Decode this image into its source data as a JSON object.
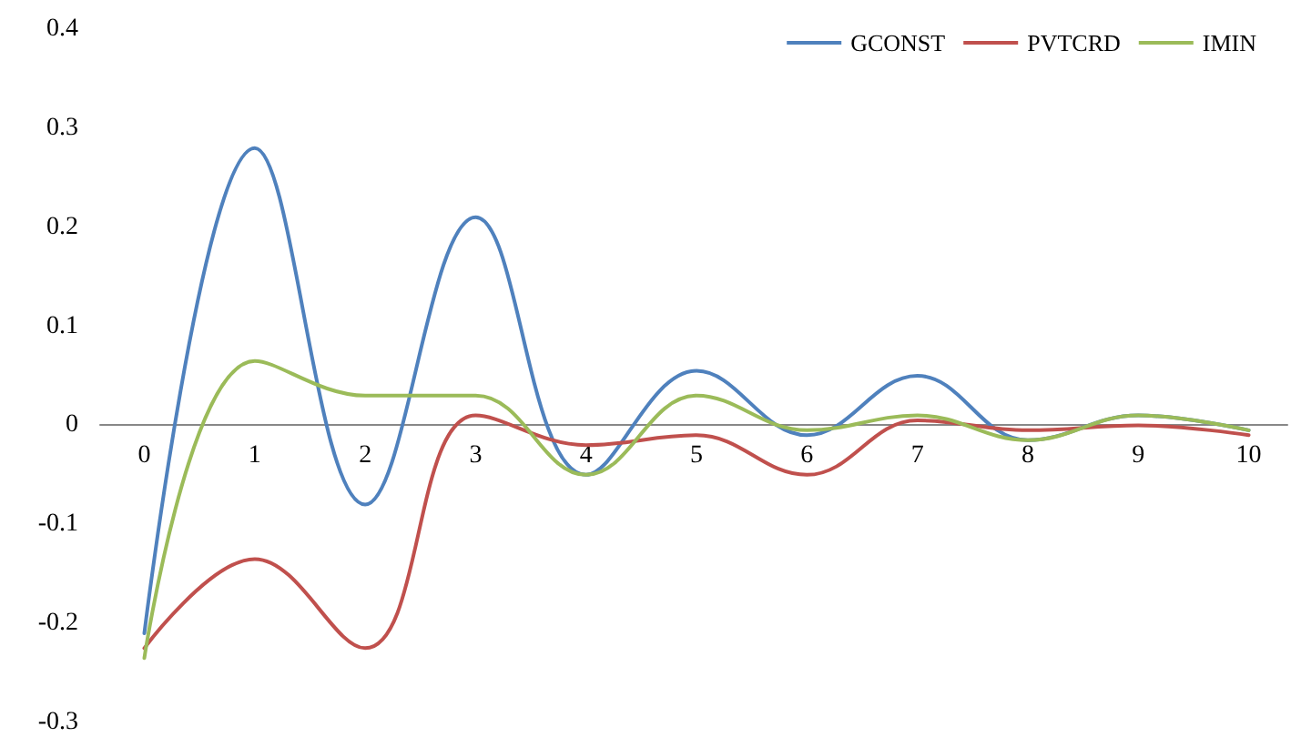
{
  "chart_data": {
    "type": "line",
    "x": [
      0,
      1,
      2,
      3,
      4,
      5,
      6,
      7,
      8,
      9,
      10
    ],
    "series": [
      {
        "name": "GCONST",
        "color": "#4f81bd",
        "values": [
          -0.21,
          0.28,
          -0.08,
          0.21,
          -0.05,
          0.055,
          -0.01,
          0.05,
          -0.015,
          0.01,
          -0.005
        ]
      },
      {
        "name": "PVTCRD",
        "color": "#c0504d",
        "values": [
          -0.225,
          -0.135,
          -0.225,
          0.01,
          -0.02,
          -0.01,
          -0.05,
          0.005,
          -0.005,
          0.0,
          -0.01
        ]
      },
      {
        "name": "IMIN",
        "color": "#9bbb59",
        "values": [
          -0.235,
          0.065,
          0.03,
          0.03,
          -0.05,
          0.03,
          -0.005,
          0.01,
          -0.015,
          0.01,
          -0.005
        ]
      }
    ],
    "xlim": [
      -0.4,
      10.35
    ],
    "xticks": [
      0,
      1,
      2,
      3,
      4,
      5,
      6,
      7,
      8,
      9,
      10
    ],
    "ylim": [
      -0.3,
      0.4
    ],
    "yticks": [
      -0.3,
      -0.2,
      -0.1,
      0,
      0.1,
      0.2,
      0.3,
      0.4
    ],
    "grid": false,
    "legend": "top right",
    "marker": "none",
    "line_style": "solid"
  }
}
